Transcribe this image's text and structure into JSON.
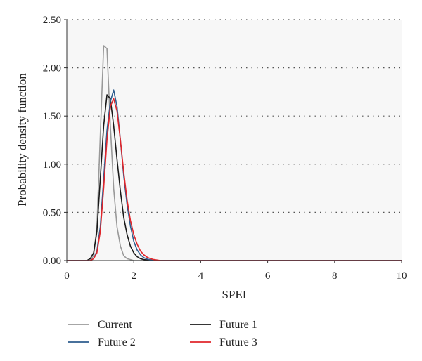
{
  "chart_data": {
    "type": "line",
    "title": "",
    "xlabel": "SPEI",
    "ylabel": "Probability density function",
    "xlim": [
      0,
      10
    ],
    "ylim": [
      0,
      2.5
    ],
    "x_ticks": [
      "0",
      "2",
      "4",
      "6",
      "8",
      "10"
    ],
    "y_ticks": [
      "0.00",
      "0.50",
      "1.00",
      "1.50",
      "2.00",
      "2.50"
    ],
    "grid": "horizontal dotted",
    "legend_position": "bottom",
    "series": [
      {
        "name": "Current",
        "color": "#999999",
        "x": [
          0,
          0.7,
          0.8,
          0.9,
          1.0,
          1.1,
          1.2,
          1.3,
          1.4,
          1.5,
          1.6,
          1.7,
          1.8,
          1.9,
          2.0,
          2.2,
          10
        ],
        "y": [
          0,
          0,
          0.05,
          0.35,
          1.3,
          2.23,
          2.2,
          1.4,
          0.75,
          0.35,
          0.15,
          0.05,
          0.02,
          0.01,
          0,
          0,
          0
        ]
      },
      {
        "name": "Future 1",
        "color": "#1a1a1a",
        "x": [
          0,
          0.6,
          0.7,
          0.8,
          0.9,
          1.0,
          1.1,
          1.2,
          1.3,
          1.4,
          1.5,
          1.6,
          1.7,
          1.8,
          1.9,
          2.0,
          2.1,
          2.2,
          2.3,
          2.5,
          2.7,
          10
        ],
        "y": [
          0,
          0,
          0.02,
          0.08,
          0.3,
          0.85,
          1.4,
          1.72,
          1.68,
          1.4,
          1.05,
          0.72,
          0.45,
          0.27,
          0.15,
          0.08,
          0.04,
          0.02,
          0.01,
          0,
          0,
          0
        ]
      },
      {
        "name": "Future 2",
        "color": "#2e5d8e",
        "x": [
          0,
          0.7,
          0.8,
          0.9,
          1.0,
          1.1,
          1.2,
          1.3,
          1.4,
          1.5,
          1.6,
          1.7,
          1.8,
          1.9,
          2.0,
          2.1,
          2.2,
          2.3,
          2.4,
          2.6,
          2.8,
          10
        ],
        "y": [
          0,
          0,
          0.02,
          0.1,
          0.35,
          0.85,
          1.35,
          1.65,
          1.77,
          1.6,
          1.25,
          0.88,
          0.58,
          0.36,
          0.2,
          0.11,
          0.06,
          0.03,
          0.015,
          0,
          0,
          0
        ]
      },
      {
        "name": "Future 3",
        "color": "#e0262b",
        "x": [
          0,
          0.7,
          0.8,
          0.9,
          1.0,
          1.1,
          1.2,
          1.3,
          1.4,
          1.5,
          1.6,
          1.7,
          1.8,
          1.9,
          2.0,
          2.1,
          2.2,
          2.3,
          2.4,
          2.5,
          2.6,
          2.8,
          3.0,
          10
        ],
        "y": [
          0,
          0,
          0.02,
          0.08,
          0.3,
          0.75,
          1.25,
          1.6,
          1.68,
          1.55,
          1.25,
          0.92,
          0.63,
          0.42,
          0.27,
          0.17,
          0.1,
          0.06,
          0.035,
          0.02,
          0.01,
          0,
          0,
          0
        ]
      }
    ]
  }
}
